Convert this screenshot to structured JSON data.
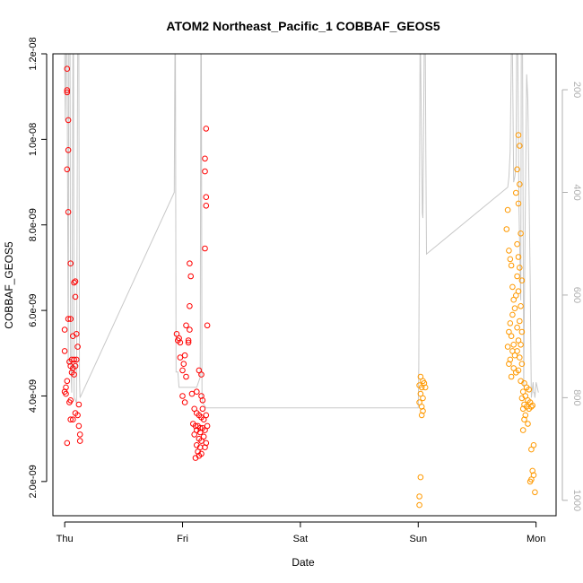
{
  "chart_data": {
    "type": "scatter",
    "title": "ATOM2 Northeast_Pacific_1 COBBAF_GEOS5",
    "xlabel": "Date",
    "ylabel": "COBBAF_GEOS5",
    "x_ticks": [
      "Thu",
      "Fri",
      "Sat",
      "Sun",
      "Mon"
    ],
    "xlim": [
      -0.1,
      4.17
    ],
    "y_ticks": [
      "2.0e-09",
      "4.0e-09",
      "6.0e-09",
      "8.0e-09",
      "1.0e-08",
      "1.2e-08"
    ],
    "ylim": [
      1.2e-09,
      1.2e-08
    ],
    "y2_ticks": [
      "200",
      "400",
      "600",
      "800",
      "1000"
    ],
    "y2lim_reversed": [
      130,
      1030
    ],
    "grid": false,
    "colors": {
      "series1": "#ff0000",
      "series2": "#ff9900",
      "pressure_line": "#c8c8c8",
      "secondary_axis": "#b0b0b0"
    },
    "series": [
      {
        "color": "#ff0000",
        "points": [
          [
            0.02,
            1.165e-08
          ],
          [
            0.02,
            1.115e-08
          ],
          [
            0.02,
            1.11e-08
          ],
          [
            0.03,
            1.045e-08
          ],
          [
            0.03,
            9.75e-09
          ],
          [
            0.02,
            9.3e-09
          ],
          [
            0.03,
            8.3e-09
          ],
          [
            0.05,
            7.1e-09
          ],
          [
            0.08,
            6.65e-09
          ],
          [
            0.09,
            6.68e-09
          ],
          [
            0.09,
            6.32e-09
          ],
          [
            0.03,
            5.8e-09
          ],
          [
            0.05,
            5.8e-09
          ],
          [
            0.07,
            5.4e-09
          ],
          [
            0.1,
            5.45e-09
          ],
          [
            0.0,
            5.55e-09
          ],
          [
            0.0,
            5.05e-09
          ],
          [
            0.11,
            5.15e-09
          ],
          [
            0.04,
            4.8e-09
          ],
          [
            0.06,
            4.85e-09
          ],
          [
            0.08,
            4.85e-09
          ],
          [
            0.1,
            4.85e-09
          ],
          [
            0.05,
            4.7e-09
          ],
          [
            0.07,
            4.65e-09
          ],
          [
            0.09,
            4.7e-09
          ],
          [
            0.06,
            4.55e-09
          ],
          [
            0.08,
            4.5e-09
          ],
          [
            0.02,
            4.35e-09
          ],
          [
            0.01,
            4.2e-09
          ],
          [
            0.0,
            4.1e-09
          ],
          [
            0.01,
            4.05e-09
          ],
          [
            0.05,
            3.9e-09
          ],
          [
            0.04,
            3.85e-09
          ],
          [
            0.12,
            3.8e-09
          ],
          [
            0.09,
            3.6e-09
          ],
          [
            0.11,
            3.55e-09
          ],
          [
            0.05,
            3.45e-09
          ],
          [
            0.07,
            3.45e-09
          ],
          [
            0.12,
            3.3e-09
          ],
          [
            0.13,
            3.1e-09
          ],
          [
            0.13,
            2.95e-09
          ],
          [
            0.02,
            2.9e-09
          ],
          [
            0.95,
            5.45e-09
          ],
          [
            0.97,
            5.35e-09
          ],
          [
            0.96,
            5.3e-09
          ],
          [
            0.98,
            5.25e-09
          ],
          [
            1.03,
            5.65e-09
          ],
          [
            1.06,
            5.55e-09
          ],
          [
            1.05,
            5.3e-09
          ],
          [
            1.05,
            5.25e-09
          ],
          [
            1.02,
            4.95e-09
          ],
          [
            0.98,
            4.9e-09
          ],
          [
            1.01,
            4.75e-09
          ],
          [
            1.06,
            7.1e-09
          ],
          [
            1.07,
            6.8e-09
          ],
          [
            1.06,
            6.1e-09
          ],
          [
            1.0,
            4.6e-09
          ],
          [
            1.03,
            4.45e-09
          ],
          [
            1.0,
            4e-09
          ],
          [
            1.02,
            3.85e-09
          ],
          [
            1.08,
            4.05e-09
          ],
          [
            1.12,
            4.1e-09
          ],
          [
            1.14,
            4.6e-09
          ],
          [
            1.16,
            4.5e-09
          ],
          [
            1.16,
            4e-09
          ],
          [
            1.17,
            3.9e-09
          ],
          [
            1.2,
            1.025e-08
          ],
          [
            1.19,
            9.55e-09
          ],
          [
            1.19,
            9.25e-09
          ],
          [
            1.2,
            8.65e-09
          ],
          [
            1.2,
            8.45e-09
          ],
          [
            1.19,
            7.45e-09
          ],
          [
            1.21,
            5.65e-09
          ],
          [
            1.1,
            3.7e-09
          ],
          [
            1.12,
            3.6e-09
          ],
          [
            1.14,
            3.55e-09
          ],
          [
            1.16,
            3.5e-09
          ],
          [
            1.18,
            3.45e-09
          ],
          [
            1.09,
            3.35e-09
          ],
          [
            1.11,
            3.3e-09
          ],
          [
            1.13,
            3.3e-09
          ],
          [
            1.15,
            3.25e-09
          ],
          [
            1.17,
            3.25e-09
          ],
          [
            1.19,
            3.2e-09
          ],
          [
            1.12,
            3.2e-09
          ],
          [
            1.15,
            3.15e-09
          ],
          [
            1.1,
            3.1e-09
          ],
          [
            1.18,
            3.05e-09
          ],
          [
            1.14,
            3e-09
          ],
          [
            1.16,
            2.95e-09
          ],
          [
            1.2,
            2.9e-09
          ],
          [
            1.12,
            2.85e-09
          ],
          [
            1.15,
            2.8e-09
          ],
          [
            1.19,
            2.8e-09
          ],
          [
            1.13,
            2.7e-09
          ],
          [
            1.16,
            2.65e-09
          ],
          [
            1.14,
            2.6e-09
          ],
          [
            1.11,
            2.55e-09
          ],
          [
            1.21,
            3.3e-09
          ],
          [
            1.2,
            3.55e-09
          ],
          [
            1.17,
            3.7e-09
          ]
        ]
      },
      {
        "color": "#ff9900",
        "points": [
          [
            3.02,
            4.45e-09
          ],
          [
            3.04,
            4.35e-09
          ],
          [
            3.01,
            4.25e-09
          ],
          [
            3.03,
            4.2e-09
          ],
          [
            3.05,
            4.3e-09
          ],
          [
            3.06,
            4.2e-09
          ],
          [
            3.02,
            4.05e-09
          ],
          [
            3.04,
            3.95e-09
          ],
          [
            3.01,
            3.85e-09
          ],
          [
            3.03,
            3.75e-09
          ],
          [
            3.04,
            3.65e-09
          ],
          [
            3.03,
            3.55e-09
          ],
          [
            3.02,
            2.1e-09
          ],
          [
            3.01,
            1.65e-09
          ],
          [
            3.01,
            1.45e-09
          ],
          [
            3.76,
            8.35e-09
          ],
          [
            3.75,
            7.9e-09
          ],
          [
            3.77,
            7.4e-09
          ],
          [
            3.78,
            7.2e-09
          ],
          [
            3.79,
            7.05e-09
          ],
          [
            3.8,
            6.55e-09
          ],
          [
            3.81,
            6.25e-09
          ],
          [
            3.82,
            6.05e-09
          ],
          [
            3.8,
            5.9e-09
          ],
          [
            3.78,
            5.7e-09
          ],
          [
            3.77,
            5.5e-09
          ],
          [
            3.79,
            5.4e-09
          ],
          [
            3.81,
            5.2e-09
          ],
          [
            3.76,
            5.15e-09
          ],
          [
            3.8,
            5.05e-09
          ],
          [
            3.82,
            4.95e-09
          ],
          [
            3.78,
            4.85e-09
          ],
          [
            3.77,
            4.75e-09
          ],
          [
            3.81,
            4.65e-09
          ],
          [
            3.83,
            4.55e-09
          ],
          [
            3.79,
            4.45e-09
          ],
          [
            3.85,
            1.01e-08
          ],
          [
            3.86,
            9.85e-09
          ],
          [
            3.84,
            9.3e-09
          ],
          [
            3.86,
            8.95e-09
          ],
          [
            3.83,
            8.75e-09
          ],
          [
            3.85,
            8.5e-09
          ],
          [
            3.87,
            7.8e-09
          ],
          [
            3.84,
            7.55e-09
          ],
          [
            3.85,
            7.25e-09
          ],
          [
            3.86,
            7e-09
          ],
          [
            3.84,
            6.8e-09
          ],
          [
            3.88,
            6.7e-09
          ],
          [
            3.85,
            6.45e-09
          ],
          [
            3.83,
            6.35e-09
          ],
          [
            3.87,
            6.1e-09
          ],
          [
            3.86,
            5.75e-09
          ],
          [
            3.84,
            5.6e-09
          ],
          [
            3.88,
            5.5e-09
          ],
          [
            3.85,
            5.3e-09
          ],
          [
            3.87,
            5.2e-09
          ],
          [
            3.84,
            5.05e-09
          ],
          [
            3.86,
            4.9e-09
          ],
          [
            3.88,
            4.75e-09
          ],
          [
            3.85,
            4.6e-09
          ],
          [
            3.87,
            4.35e-09
          ],
          [
            3.9,
            4.3e-09
          ],
          [
            3.92,
            4.2e-09
          ],
          [
            3.94,
            4.15e-09
          ],
          [
            3.89,
            4.1e-09
          ],
          [
            3.91,
            4e-09
          ],
          [
            3.88,
            3.95e-09
          ],
          [
            3.93,
            3.9e-09
          ],
          [
            3.95,
            3.85e-09
          ],
          [
            3.9,
            3.8e-09
          ],
          [
            3.92,
            3.75e-09
          ],
          [
            3.96,
            3.75e-09
          ],
          [
            3.89,
            3.7e-09
          ],
          [
            3.94,
            3.7e-09
          ],
          [
            3.97,
            3.78e-09
          ],
          [
            3.91,
            3.55e-09
          ],
          [
            3.9,
            3.45e-09
          ],
          [
            3.93,
            3.35e-09
          ],
          [
            3.89,
            3.2e-09
          ],
          [
            3.98,
            2.85e-09
          ],
          [
            3.96,
            2.75e-09
          ],
          [
            3.97,
            2.25e-09
          ],
          [
            3.98,
            2.15e-09
          ],
          [
            3.96,
            2.05e-09
          ],
          [
            3.95,
            2e-09
          ],
          [
            3.99,
            1.75e-09
          ]
        ]
      }
    ],
    "pressure_line": {
      "color": "#c8c8c8",
      "points": [
        [
          0.0,
          130
        ],
        [
          0.005,
          260
        ],
        [
          0.01,
          130
        ],
        [
          0.02,
          130
        ],
        [
          0.03,
          740
        ],
        [
          0.035,
          130
        ],
        [
          0.045,
          130
        ],
        [
          0.05,
          720
        ],
        [
          0.06,
          790
        ],
        [
          0.07,
          130
        ],
        [
          0.075,
          130
        ],
        [
          0.08,
          800
        ],
        [
          0.1,
          810
        ],
        [
          0.11,
          130
        ],
        [
          0.12,
          130
        ],
        [
          0.125,
          760
        ],
        [
          0.13,
          800
        ],
        [
          0.93,
          400
        ],
        [
          0.935,
          130
        ],
        [
          0.94,
          130
        ],
        [
          0.945,
          750
        ],
        [
          0.96,
          750
        ],
        [
          0.97,
          780
        ],
        [
          1.0,
          780
        ],
        [
          1.02,
          780
        ],
        [
          1.08,
          780
        ],
        [
          1.12,
          780
        ],
        [
          1.15,
          760
        ],
        [
          1.155,
          130
        ],
        [
          1.16,
          130
        ],
        [
          1.165,
          790
        ],
        [
          1.17,
          810
        ],
        [
          1.2,
          820
        ],
        [
          3.0,
          820
        ],
        [
          3.005,
          740
        ],
        [
          3.015,
          130
        ],
        [
          3.02,
          130
        ],
        [
          3.035,
          440
        ],
        [
          3.04,
          450
        ],
        [
          3.05,
          130
        ],
        [
          3.06,
          130
        ],
        [
          3.065,
          330
        ],
        [
          3.07,
          520
        ],
        [
          3.76,
          390
        ],
        [
          3.77,
          370
        ],
        [
          3.78,
          320
        ],
        [
          3.79,
          130
        ],
        [
          3.8,
          130
        ],
        [
          3.81,
          380
        ],
        [
          3.82,
          370
        ],
        [
          3.83,
          350
        ],
        [
          3.835,
          130
        ],
        [
          3.845,
          130
        ],
        [
          3.855,
          430
        ],
        [
          3.87,
          610
        ],
        [
          3.875,
          130
        ],
        [
          3.885,
          130
        ],
        [
          3.895,
          780
        ],
        [
          3.9,
          640
        ],
        [
          3.92,
          170
        ],
        [
          3.93,
          220
        ],
        [
          3.95,
          570
        ],
        [
          3.96,
          800
        ],
        [
          3.97,
          780
        ],
        [
          3.975,
          770
        ],
        [
          3.98,
          790
        ],
        [
          3.985,
          790
        ],
        [
          3.99,
          800
        ],
        [
          4.0,
          770
        ],
        [
          4.01,
          780
        ],
        [
          4.02,
          790
        ]
      ]
    }
  }
}
